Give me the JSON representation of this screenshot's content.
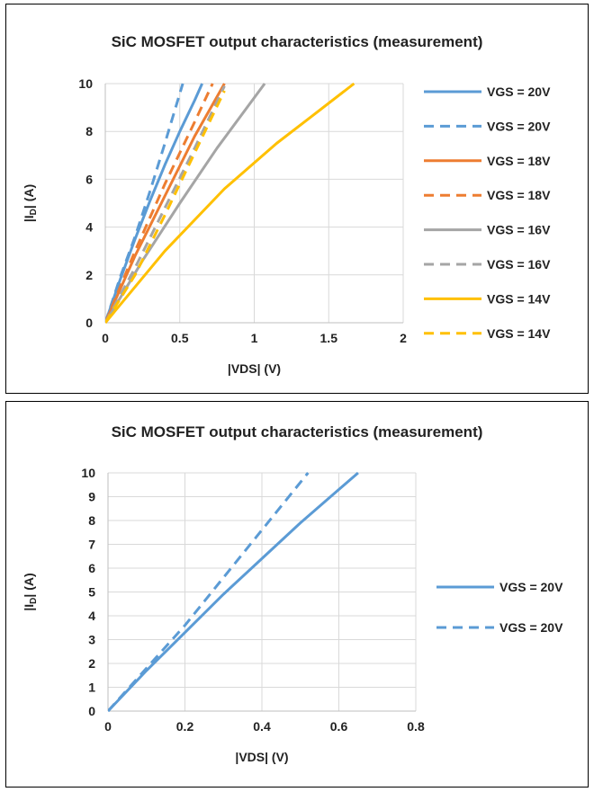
{
  "chart_data": [
    {
      "type": "line",
      "title": "SiC MOSFET output characteristics (measurement)",
      "xlabel": "|VDS| (V)",
      "ylabel_main": "|I",
      "ylabel_sub": "D",
      "ylabel_end": "| (A)",
      "xlim": [
        0,
        2
      ],
      "ylim": [
        0,
        10
      ],
      "xticks": [
        0,
        0.5,
        1,
        1.5,
        2
      ],
      "xtick_labels": [
        "0",
        "0.5",
        "1",
        "1.5",
        "2"
      ],
      "yticks": [
        0,
        2,
        4,
        6,
        8,
        10
      ],
      "ytick_labels": [
        "0",
        "2",
        "4",
        "6",
        "8",
        "10"
      ],
      "grid": true,
      "legend": "right",
      "series": [
        {
          "name": "VGS = 20V",
          "style": "solid",
          "color": "#5B9BD5",
          "x": [
            0,
            0.1,
            0.2,
            0.3,
            0.4,
            0.5,
            0.6,
            0.65
          ],
          "y": [
            0,
            1.8,
            3.5,
            5.1,
            6.6,
            8.0,
            9.3,
            10
          ]
        },
        {
          "name": "VGS = 20V",
          "style": "dashed",
          "color": "#5B9BD5",
          "x": [
            0,
            0.1,
            0.2,
            0.3,
            0.4,
            0.52
          ],
          "y": [
            0,
            1.9,
            3.6,
            5.5,
            7.5,
            10
          ]
        },
        {
          "name": "VGS = 18V",
          "style": "solid",
          "color": "#ED7D31",
          "x": [
            0,
            0.2,
            0.4,
            0.6,
            0.8
          ],
          "y": [
            0,
            2.8,
            5.3,
            7.8,
            10
          ]
        },
        {
          "name": "VGS = 18V",
          "style": "dashed",
          "color": "#ED7D31",
          "x": [
            0,
            0.2,
            0.4,
            0.6,
            0.72
          ],
          "y": [
            0,
            3.0,
            5.8,
            8.4,
            10
          ]
        },
        {
          "name": "VGS = 16V",
          "style": "solid",
          "color": "#A5A5A5",
          "x": [
            0,
            0.25,
            0.5,
            0.75,
            1.07
          ],
          "y": [
            0,
            2.6,
            5.0,
            7.3,
            10
          ]
        },
        {
          "name": "VGS = 16V",
          "style": "dashed",
          "color": "#A5A5A5",
          "x": [
            0,
            0.2,
            0.4,
            0.6,
            0.8
          ],
          "y": [
            0,
            2.3,
            4.8,
            7.3,
            9.9
          ]
        },
        {
          "name": "VGS = 14V",
          "style": "solid",
          "color": "#FFC000",
          "x": [
            0,
            0.4,
            0.8,
            1.15,
            1.4,
            1.67
          ],
          "y": [
            0,
            3.0,
            5.6,
            7.5,
            8.7,
            10
          ]
        },
        {
          "name": "VGS = 14V",
          "style": "dashed",
          "color": "#FFC000",
          "x": [
            0,
            0.2,
            0.4,
            0.6,
            0.8
          ],
          "y": [
            0,
            2.0,
            4.5,
            7.1,
            9.7
          ]
        }
      ]
    },
    {
      "type": "line",
      "title": "SiC MOSFET output characteristics (measurement)",
      "xlabel": "|VDS| (V)",
      "ylabel_main": "|I",
      "ylabel_sub": "D",
      "ylabel_end": "| (A)",
      "xlim": [
        0,
        0.8
      ],
      "ylim": [
        0,
        10
      ],
      "xticks": [
        0,
        0.2,
        0.4,
        0.6,
        0.8
      ],
      "xtick_labels": [
        "0",
        "0.2",
        "0.4",
        "0.6",
        "0.8"
      ],
      "yticks": [
        0,
        1,
        2,
        3,
        4,
        5,
        6,
        7,
        8,
        9,
        10
      ],
      "ytick_labels": [
        "0",
        "1",
        "2",
        "3",
        "4",
        "5",
        "6",
        "7",
        "8",
        "9",
        "10"
      ],
      "grid": true,
      "legend": "right",
      "series": [
        {
          "name": "VGS = 20V",
          "style": "solid",
          "color": "#5B9BD5",
          "x": [
            0,
            0.1,
            0.2,
            0.3,
            0.4,
            0.5,
            0.6,
            0.65
          ],
          "y": [
            0,
            1.7,
            3.3,
            4.9,
            6.4,
            7.9,
            9.3,
            10
          ]
        },
        {
          "name": "VGS = 20V",
          "style": "dashed",
          "color": "#5B9BD5",
          "x": [
            0,
            0.1,
            0.2,
            0.3,
            0.4,
            0.52
          ],
          "y": [
            0,
            1.8,
            3.6,
            5.6,
            7.6,
            10
          ]
        }
      ]
    }
  ]
}
